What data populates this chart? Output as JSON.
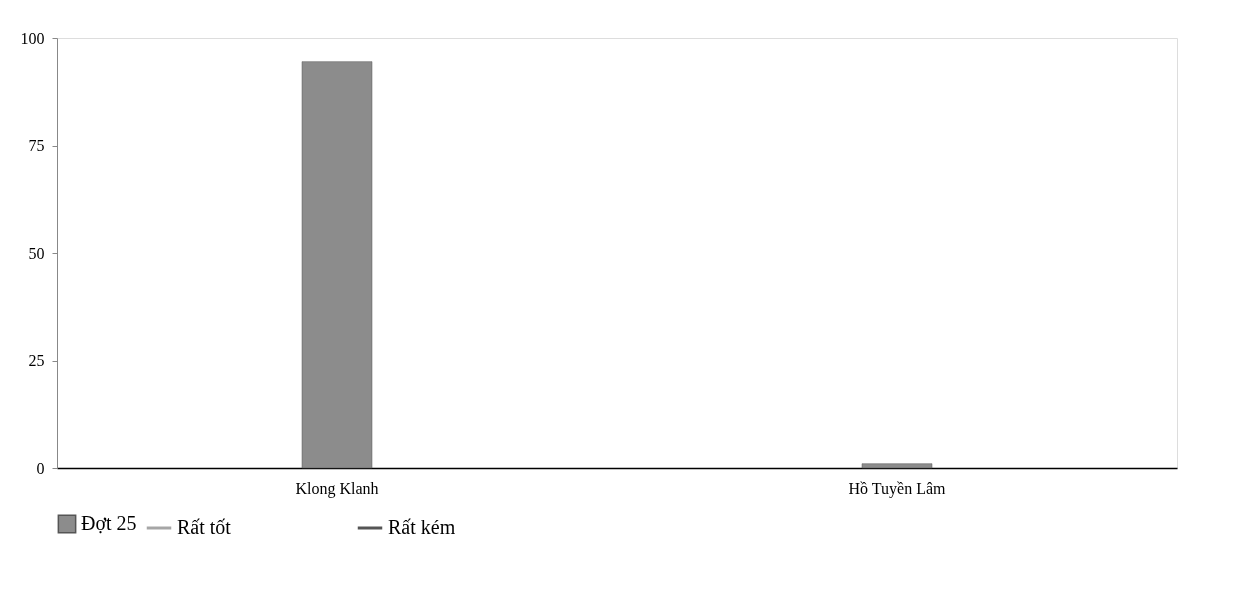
{
  "chart_data": {
    "type": "bar",
    "categories": [
      "Klong Klanh",
      "Hồ Tuyền Lâm"
    ],
    "series": [
      {
        "name": "Đợt 25",
        "color": "#8c8c8c",
        "values": [
          94.5,
          1
        ]
      },
      {
        "name": "Rất tốt",
        "type": "line",
        "color": "#a6a6a6",
        "values": [
          null,
          null
        ]
      },
      {
        "name": "Rất kém",
        "type": "line",
        "color": "#555555",
        "values": [
          null,
          null
        ]
      }
    ],
    "ylim": [
      0,
      100
    ],
    "yticks": [
      0,
      25,
      50,
      75,
      100
    ],
    "grid": false,
    "legend": "bottom"
  }
}
